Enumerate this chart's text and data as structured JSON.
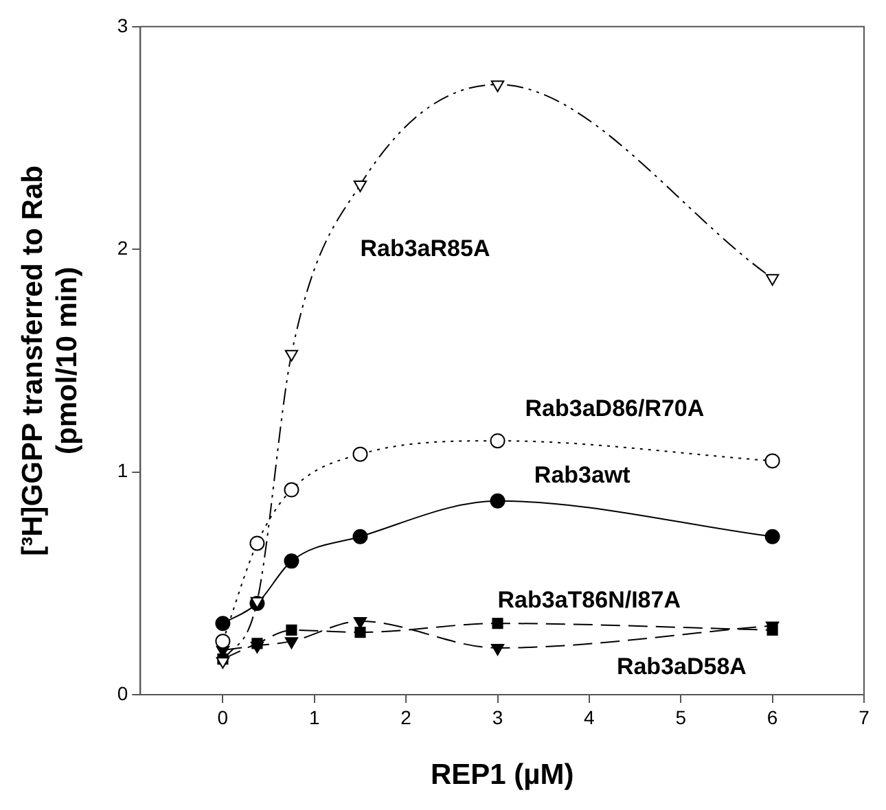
{
  "chart_data": {
    "type": "line",
    "xlabel": "REP1 (µM)",
    "ylabel": "[³H]GGPP transferred to Rab\n(pmol/10 min)",
    "xlim": [
      -0.9,
      7
    ],
    "xticks": [
      0,
      1,
      2,
      3,
      4,
      5,
      6,
      7
    ],
    "ylim": [
      0,
      3
    ],
    "yticks": [
      0,
      1,
      2,
      3
    ],
    "grid": false,
    "legend": false,
    "x": [
      0,
      0.375,
      0.75,
      1.5,
      3,
      6
    ],
    "series": [
      {
        "name": "Rab3aR85A",
        "color": "#000000",
        "marker": "triangle",
        "line_style": "dashed",
        "values": [
          0.15,
          0.42,
          1.53,
          2.29,
          2.74,
          1.87
        ]
      },
      {
        "name": "Rab3aD86/R70A",
        "color": "#000000",
        "marker": "circle",
        "line_style": "dotted",
        "values": [
          0.24,
          0.68,
          0.92,
          1.08,
          1.14,
          1.05
        ]
      },
      {
        "name": "Rab3awt",
        "color": "#000000",
        "marker": "circle",
        "line_style": "solid",
        "values": [
          0.32,
          0.41,
          0.6,
          0.71,
          0.87,
          0.71
        ]
      },
      {
        "name": "Rab3aT86N/I87A",
        "color": "#000000",
        "marker": "square",
        "line_style": "dashed",
        "values": [
          0.16,
          0.23,
          0.29,
          0.28,
          0.32,
          0.29
        ]
      },
      {
        "name": "Rab3aD58A",
        "color": "#000000",
        "marker": "triangle",
        "line_style": "dashed",
        "values": [
          0.2,
          0.22,
          0.24,
          0.33,
          0.21,
          0.31
        ]
      }
    ]
  }
}
